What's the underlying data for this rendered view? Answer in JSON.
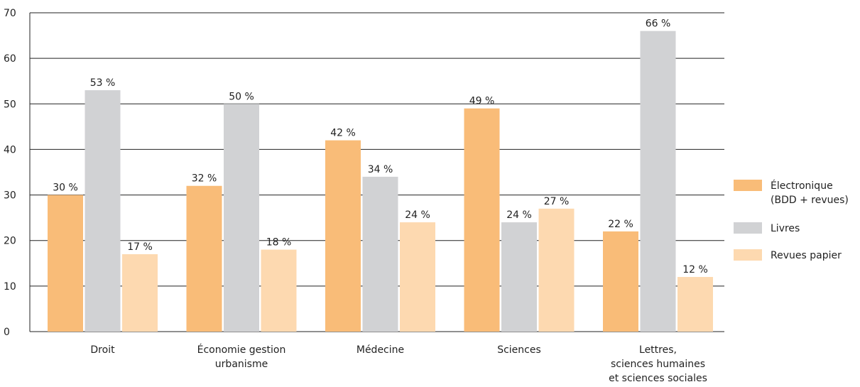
{
  "chart_data": {
    "type": "bar",
    "title": "",
    "xlabel": "",
    "ylabel": "",
    "ylim": [
      0,
      70
    ],
    "yticks": [
      0,
      10,
      20,
      30,
      40,
      50,
      60,
      70
    ],
    "grid": true,
    "legend_position": "right",
    "value_suffix": " %",
    "categories": [
      [
        "Droit"
      ],
      [
        "Économie gestion",
        "urbanisme"
      ],
      [
        "Médecine"
      ],
      [
        "Sciences"
      ],
      [
        "Lettres,",
        "sciences humaines",
        "et sciences sociales"
      ]
    ],
    "series": [
      {
        "name": [
          "Électronique",
          "(BDD + revues)"
        ],
        "color": "#f9bc78",
        "values": [
          30,
          32,
          42,
          49,
          22
        ]
      },
      {
        "name": [
          "Livres"
        ],
        "color": "#d1d2d4",
        "values": [
          53,
          50,
          34,
          24,
          66
        ]
      },
      {
        "name": [
          "Revues papier"
        ],
        "color": "#fdd9b0",
        "values": [
          17,
          18,
          24,
          27,
          12
        ]
      }
    ]
  }
}
